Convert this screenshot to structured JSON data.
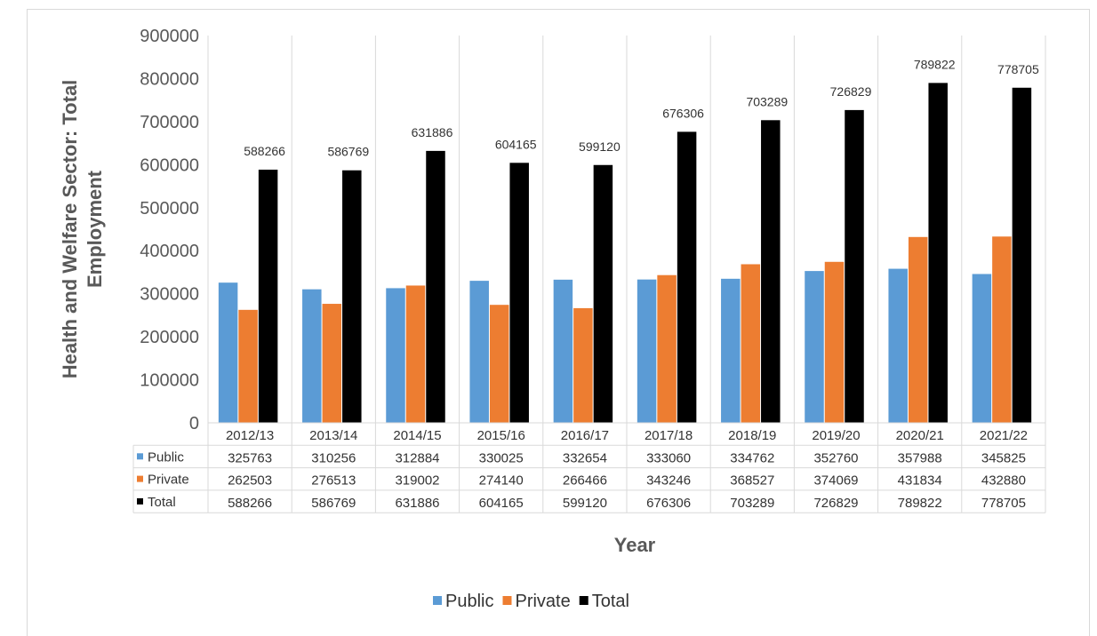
{
  "chart_data": {
    "type": "bar",
    "title": "",
    "xlabel": "Year",
    "ylabel": "Health and Welfare Sector: Total Employment",
    "ylim": [
      0,
      900000
    ],
    "yticks": [
      "0",
      "100000",
      "200000",
      "300000",
      "400000",
      "500000",
      "600000",
      "700000",
      "800000",
      "900000"
    ],
    "categories": [
      "2012/13",
      "2013/14",
      "2014/15",
      "2015/16",
      "2016/17",
      "2017/18",
      "2018/19",
      "2019/20",
      "2020/21",
      "2021/22"
    ],
    "series": [
      {
        "name": "Public",
        "color": "#5b9bd5",
        "values": [
          325763,
          310256,
          312884,
          330025,
          332654,
          333060,
          334762,
          352760,
          357988,
          345825
        ]
      },
      {
        "name": "Private",
        "color": "#ed7d31",
        "values": [
          262503,
          276513,
          319002,
          274140,
          266466,
          343246,
          368527,
          374069,
          431834,
          432880
        ]
      },
      {
        "name": "Total",
        "color": "#000000",
        "values": [
          588266,
          586769,
          631886,
          604165,
          599120,
          676306,
          703289,
          726829,
          789822,
          778705
        ]
      }
    ],
    "data_labels_series": "Total",
    "data_table": true,
    "grid": "vertical-category-separators",
    "legend_position": "bottom"
  }
}
